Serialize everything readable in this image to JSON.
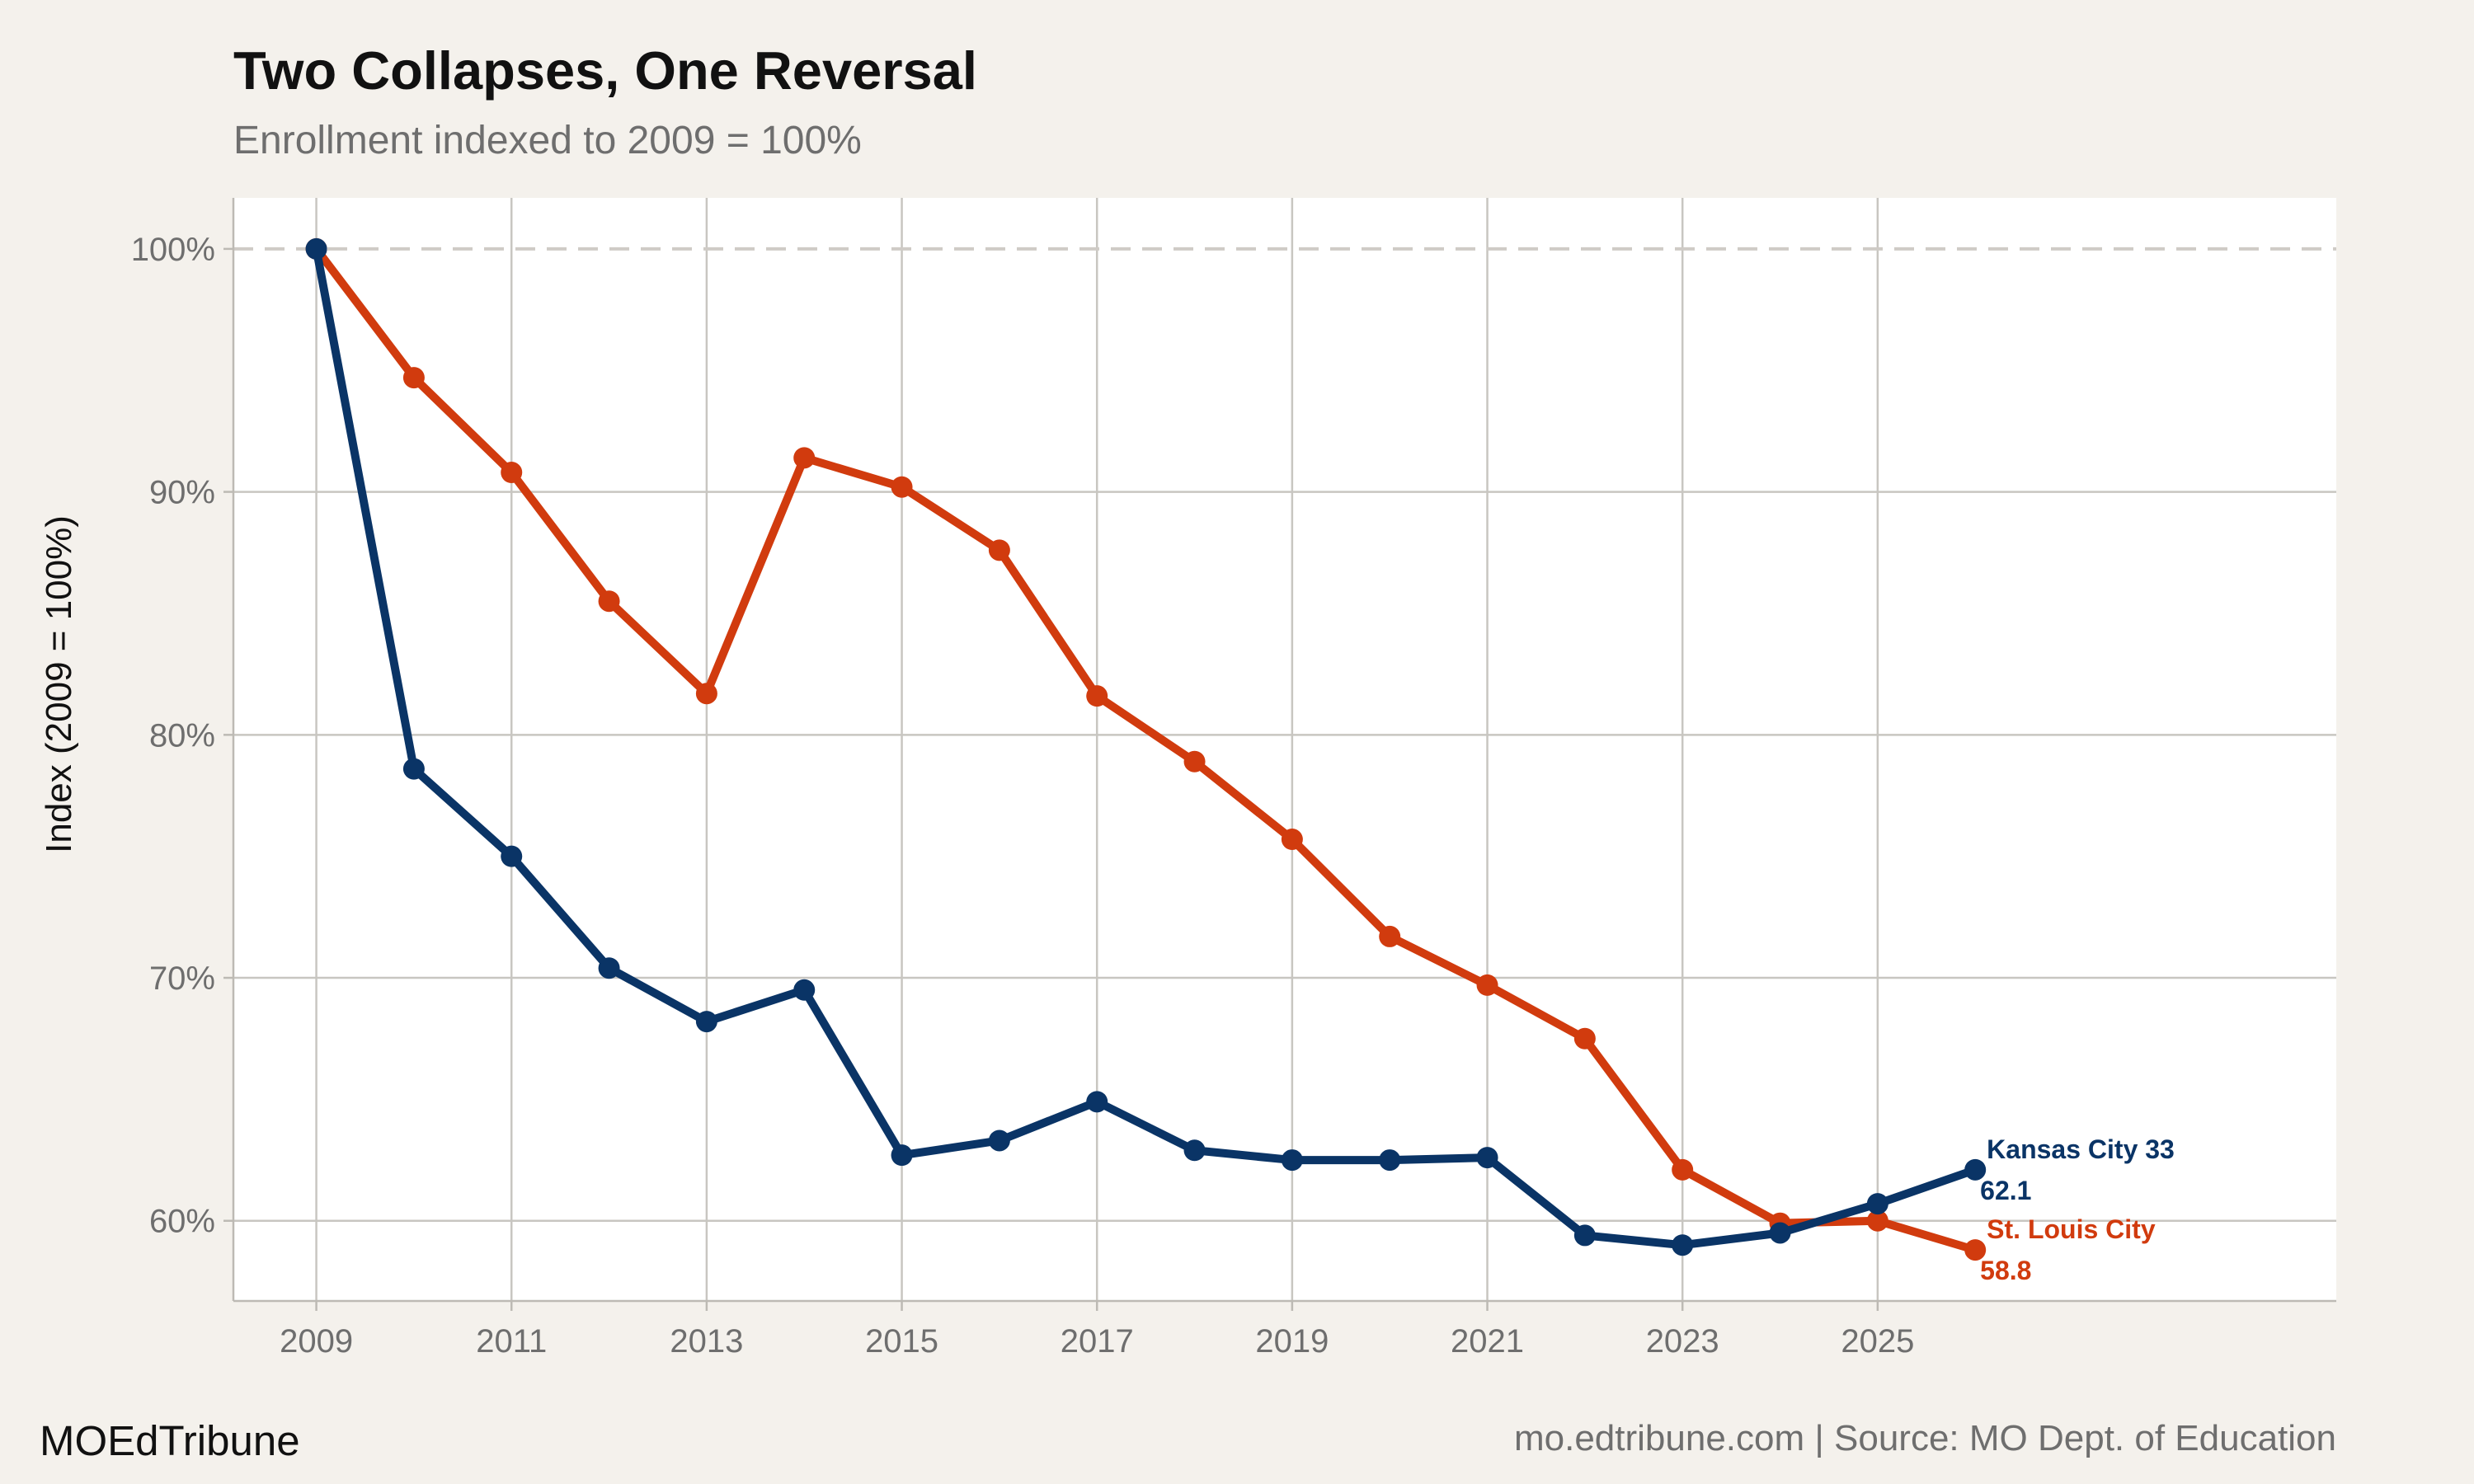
{
  "title": "Two Collapses, One Reversal",
  "subtitle": "Enrollment indexed to 2009 = 100%",
  "brand": "MOEdTribune",
  "source": "mo.edtribune.com | Source: MO Dept. of Education",
  "chart_data": {
    "type": "line",
    "title": "Two Collapses, One Reversal",
    "subtitle": "Enrollment indexed to 2009 = 100%",
    "xlabel": "",
    "ylabel": "Index (2009 = 100%)",
    "x": [
      2009,
      2010,
      2011,
      2012,
      2013,
      2014,
      2015,
      2016,
      2017,
      2018,
      2019,
      2020,
      2021,
      2022,
      2023,
      2024,
      2025,
      2026
    ],
    "xlim": [
      2008.15,
      2029.7
    ],
    "ylim": [
      56.7,
      102.1
    ],
    "x_ticks": [
      2009,
      2011,
      2013,
      2015,
      2017,
      2019,
      2021,
      2023,
      2025
    ],
    "x_tick_labels": [
      "2009",
      "2011",
      "2013",
      "2015",
      "2017",
      "2019",
      "2021",
      "2023",
      "2025"
    ],
    "y_ticks": [
      60,
      70,
      80,
      90,
      100
    ],
    "y_tick_labels": [
      "60%",
      "70%",
      "80%",
      "90%",
      "100%"
    ],
    "grid": true,
    "reference_line": {
      "y": 100,
      "style": "dashed"
    },
    "series": [
      {
        "name": "St. Louis City",
        "color": "#d13b0e",
        "values": [
          100,
          94.7,
          90.8,
          85.5,
          81.7,
          91.4,
          90.2,
          87.6,
          81.6,
          78.9,
          75.7,
          71.7,
          69.7,
          67.5,
          62.1,
          59.9,
          60.0,
          58.8
        ],
        "end_label": "St. Louis City",
        "end_value_label": "58.8"
      },
      {
        "name": "Kansas City 33",
        "color": "#0a3466",
        "values": [
          100,
          78.6,
          75.0,
          70.4,
          68.2,
          69.5,
          62.7,
          63.3,
          64.9,
          62.9,
          62.5,
          62.5,
          62.6,
          59.4,
          59.0,
          59.5,
          60.7,
          62.1
        ],
        "end_label": "Kansas City 33",
        "end_value_label": "62.1"
      }
    ]
  }
}
